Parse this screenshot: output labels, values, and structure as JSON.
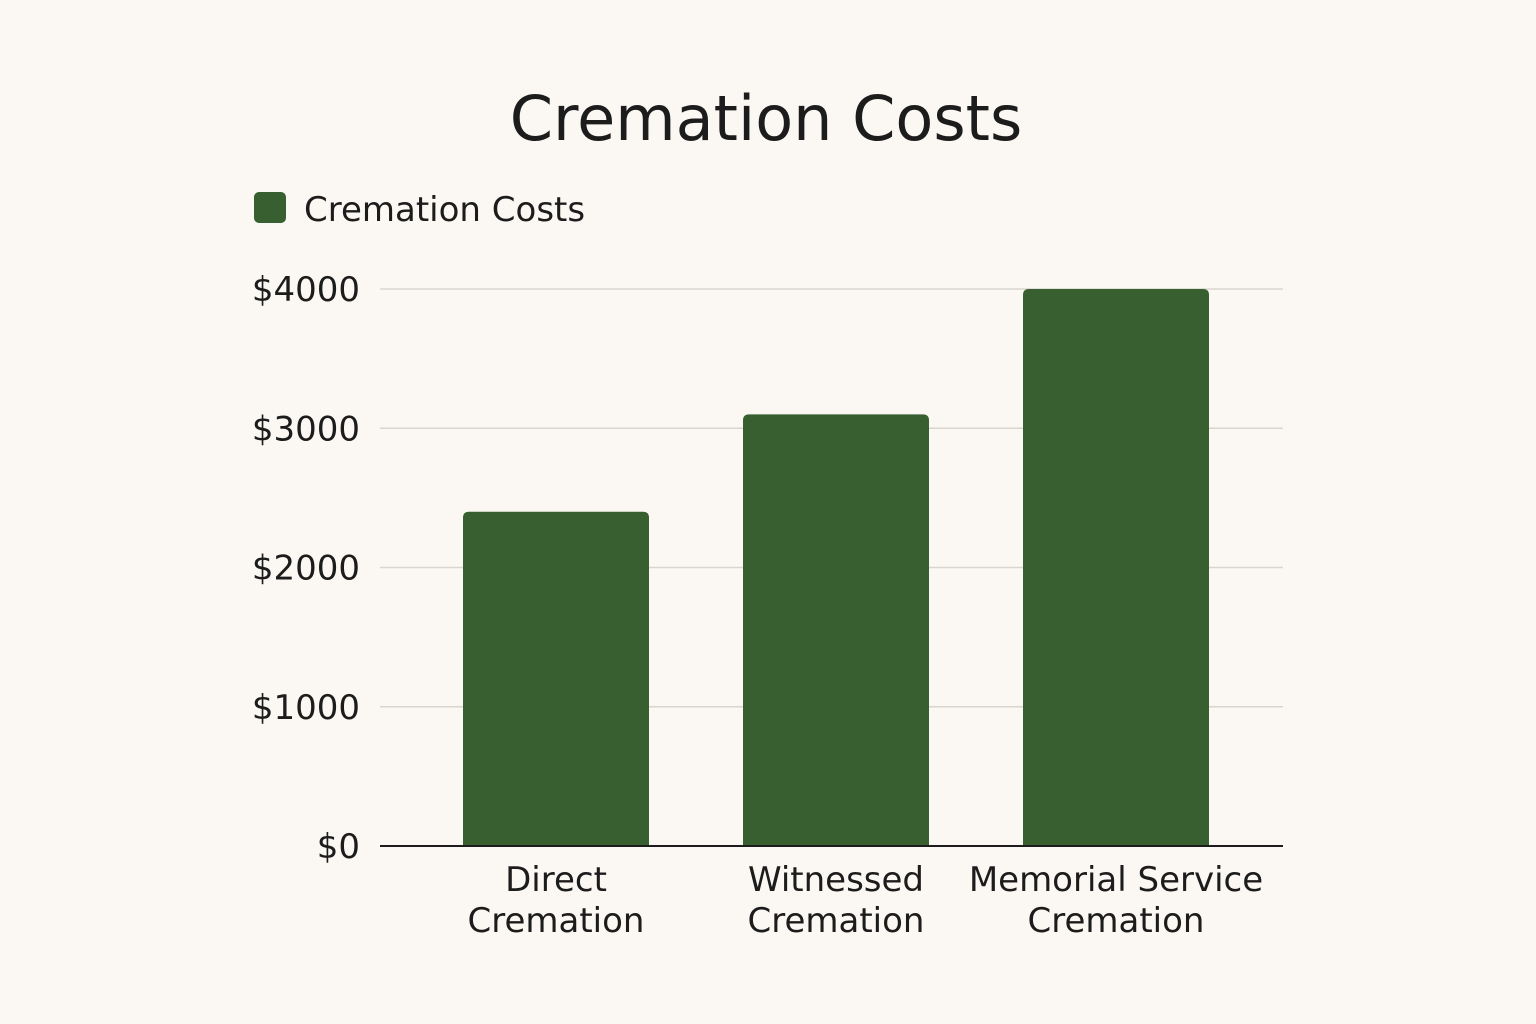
{
  "chart_data": {
    "type": "bar",
    "title": "Cremation Costs",
    "xlabel": "",
    "ylabel": "",
    "categories": [
      [
        "Direct",
        "Cremation"
      ],
      [
        "Witnessed",
        "Cremation"
      ],
      [
        "Memorial Service",
        "Cremation"
      ]
    ],
    "series": [
      {
        "name": "Cremation Costs",
        "values": [
          2400,
          3100,
          4000
        ],
        "color": "#385f30"
      }
    ],
    "ylim": [
      0,
      4000
    ],
    "yticks": [
      0,
      1000,
      2000,
      3000,
      4000
    ],
    "ytick_labels": [
      "$0",
      "$1000",
      "$2000",
      "$3000",
      "$4000"
    ],
    "grid": true,
    "legend_position": "top-left"
  }
}
